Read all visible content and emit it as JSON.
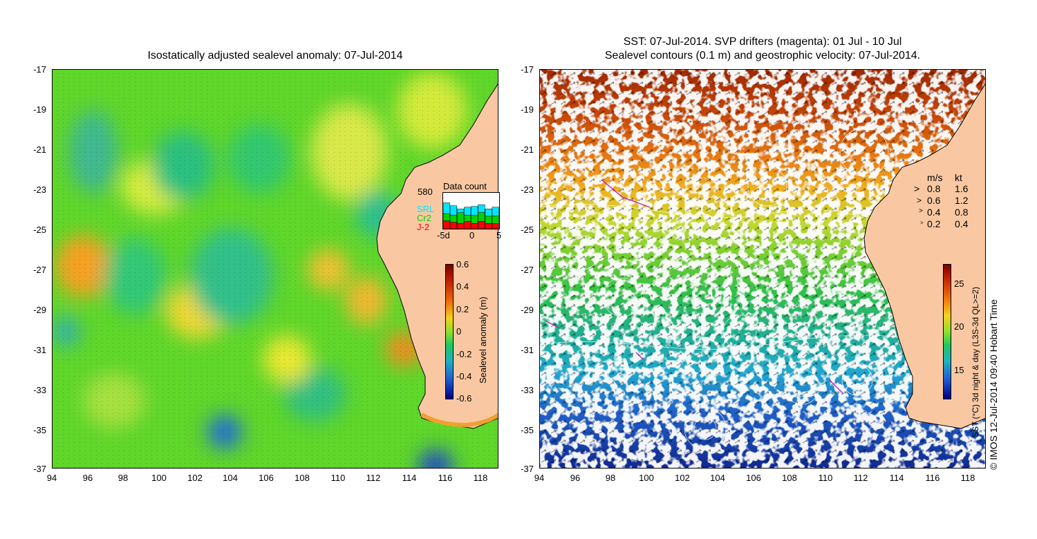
{
  "left_panel": {
    "title": "Isostatically adjusted sealevel anomaly: 07-Jul-2014",
    "y_ticks": [
      "-17",
      "-19",
      "-21",
      "-23",
      "-25",
      "-27",
      "-29",
      "-31",
      "-33",
      "-35",
      "-37"
    ],
    "x_ticks": [
      "94",
      "96",
      "98",
      "100",
      "102",
      "104",
      "106",
      "108",
      "110",
      "112",
      "114",
      "116",
      "118"
    ],
    "colorbar": {
      "label": "Sealevel anomaly (m)",
      "ticks": [
        "0.6",
        "0.4",
        "0.2",
        "0",
        "-0.2",
        "-0.4",
        "-0.6"
      ],
      "range": [
        -0.6,
        0.6
      ]
    },
    "data_count": {
      "title": "Data count",
      "max_label": "580",
      "legend": [
        {
          "name": "SRL",
          "color": "#00e5ff"
        },
        {
          "name": "Cr2",
          "color": "#00d200"
        },
        {
          "name": "J-2",
          "color": "#ff0000"
        }
      ],
      "x_ticks": [
        "-5d",
        "0",
        "5"
      ],
      "bins": [
        {
          "srl": 0.3,
          "cr2": 0.2,
          "j2": 0.22
        },
        {
          "srl": 0.26,
          "cr2": 0.2,
          "j2": 0.18
        },
        {
          "srl": 0.1,
          "cr2": 0.3,
          "j2": 0.15
        },
        {
          "srl": 0.22,
          "cr2": 0.18,
          "j2": 0.2
        },
        {
          "srl": 0.25,
          "cr2": 0.22,
          "j2": 0.15
        },
        {
          "srl": 0.22,
          "cr2": 0.25,
          "j2": 0.2
        },
        {
          "srl": 0.2,
          "cr2": 0.2,
          "j2": 0.15
        },
        {
          "srl": 0.24,
          "cr2": 0.22,
          "j2": 0.14
        }
      ]
    }
  },
  "right_panel": {
    "title_line1": "SST: 07-Jul-2014. SVP drifters (magenta): 01 Jul - 10 Jul",
    "title_line2": "Sealevel contours (0.1 m) and geostrophic velocity: 07-Jul-2014.",
    "y_ticks": [
      "-17",
      "-19",
      "-21",
      "-23",
      "-25",
      "-27",
      "-29",
      "-31",
      "-33",
      "-35",
      "-37"
    ],
    "x_ticks": [
      "94",
      "96",
      "98",
      "100",
      "102",
      "104",
      "106",
      "108",
      "110",
      "112",
      "114",
      "116",
      "118"
    ],
    "velocity_legend": {
      "header_ms": "m/s",
      "header_kt": "kt",
      "rows": [
        {
          "ms": "0.8",
          "kt": "1.6"
        },
        {
          "ms": "0.6",
          "kt": "1.2"
        },
        {
          "ms": "0.4",
          "kt": "0.8"
        },
        {
          "ms": "0.2",
          "kt": "0.4"
        }
      ]
    },
    "colorbar": {
      "label": "SST (°C) 3d night & day (L3S-3d QL>=2)",
      "ticks": [
        "25",
        "20",
        "15"
      ],
      "range": [
        12,
        28
      ]
    }
  },
  "copyright": "© IMOS 12-Jul-2014 09:40 Hobart Time",
  "colors": {
    "land": "#f9c8a2",
    "coast": "#000000",
    "sla_green": "#33cc22",
    "sst_red": "#b03808",
    "sst_blue": "#1030a0"
  }
}
